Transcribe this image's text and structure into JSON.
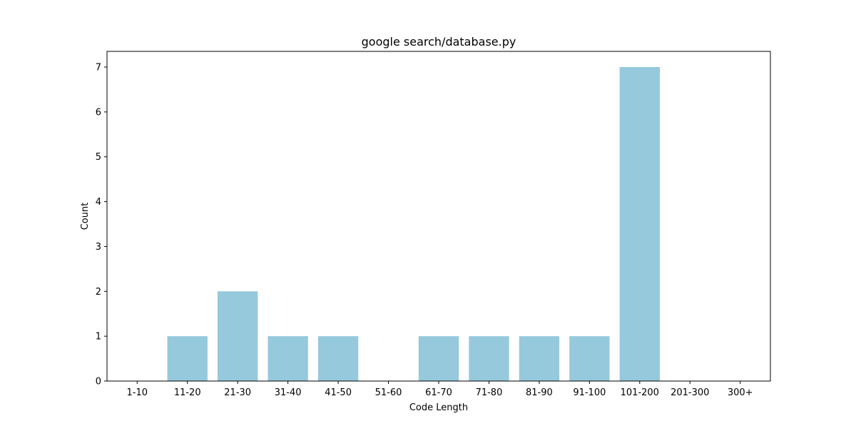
{
  "chart_data": {
    "type": "bar",
    "title": "google search/database.py",
    "xlabel": "Code Length",
    "ylabel": "Count",
    "categories": [
      "1-10",
      "11-20",
      "21-30",
      "31-40",
      "41-50",
      "51-60",
      "61-70",
      "71-80",
      "81-90",
      "91-100",
      "101-200",
      "201-300",
      "300+"
    ],
    "values": [
      0,
      1,
      2,
      1,
      1,
      0,
      1,
      1,
      1,
      1,
      7,
      0,
      0
    ],
    "ylim": [
      0,
      7.35
    ],
    "yticks": [
      0,
      1,
      2,
      3,
      4,
      5,
      6,
      7
    ],
    "grid": false,
    "bar_color": "#96c9dc"
  }
}
